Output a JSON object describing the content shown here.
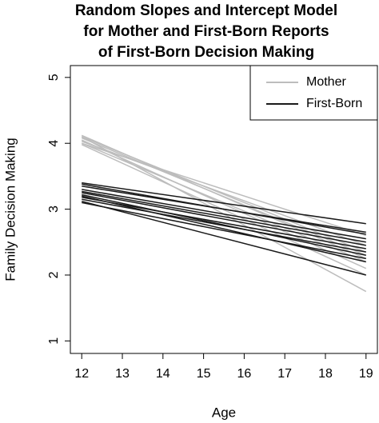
{
  "chart_data": {
    "type": "line",
    "title": [
      "Random Slopes and Intercept Model",
      "for Mother and First-Born Reports",
      "of First-Born Decision Making"
    ],
    "x_label": "Age",
    "y_label": "Family Decision Making",
    "x": [
      12,
      19
    ],
    "xlim": [
      11.72,
      19.28
    ],
    "ylim": [
      0.81,
      5.18
    ],
    "xticks": [
      12,
      13,
      14,
      15,
      16,
      17,
      18,
      19
    ],
    "yticks": [
      1,
      2,
      3,
      4,
      5
    ],
    "legend": "topright",
    "series": [
      {
        "name": "Mother",
        "color": "#bdbdbd",
        "values": [
          [
            4.12,
            2.25
          ],
          [
            4.1,
            1.75
          ],
          [
            4.08,
            2.3
          ],
          [
            4.05,
            2.1
          ],
          [
            4.03,
            2.45
          ],
          [
            4.0,
            2.2
          ],
          [
            4.0,
            2.6
          ],
          [
            4.1,
            2.35
          ],
          [
            3.98,
            2.0
          ]
        ]
      },
      {
        "name": "First-Born",
        "color": "#1a1a1a",
        "values": [
          [
            3.4,
            2.78
          ],
          [
            3.38,
            2.62
          ],
          [
            3.3,
            2.55
          ],
          [
            3.27,
            2.5
          ],
          [
            3.25,
            2.45
          ],
          [
            3.22,
            2.3
          ],
          [
            3.2,
            2.2
          ],
          [
            3.15,
            2.35
          ],
          [
            3.12,
            2.0
          ],
          [
            3.1,
            2.25
          ],
          [
            3.35,
            2.65
          ],
          [
            3.18,
            2.4
          ]
        ]
      }
    ]
  }
}
